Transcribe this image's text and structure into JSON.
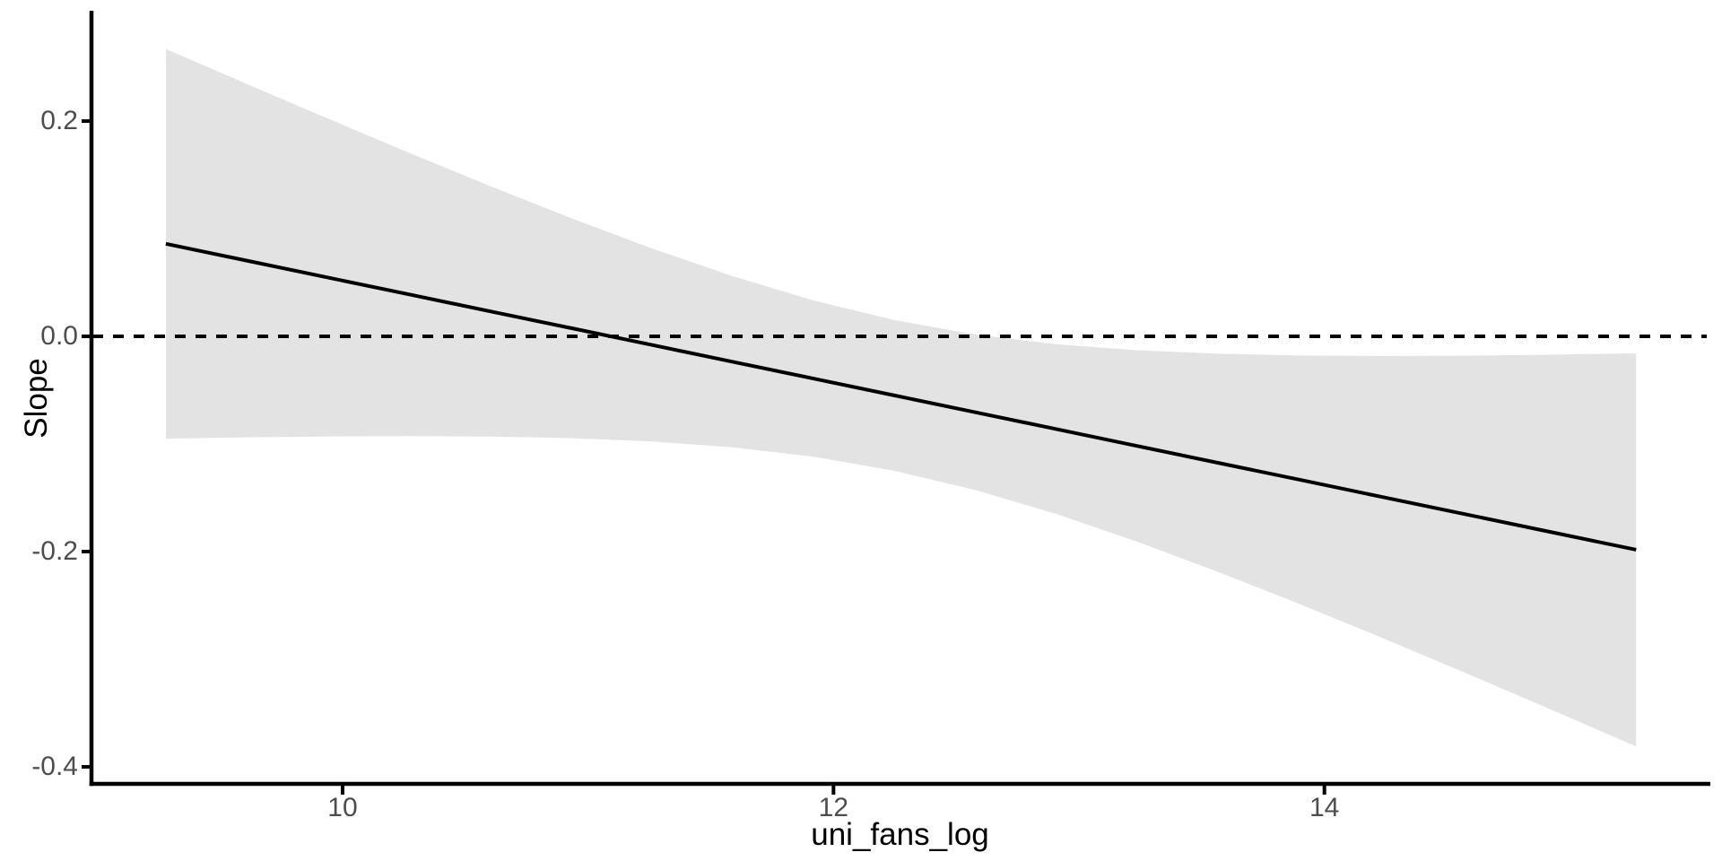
{
  "figure": {
    "background": "#FFFFFF"
  },
  "chart_data": {
    "type": "line",
    "title": "",
    "xlabel": "uni_fans_log",
    "ylabel": "Slope",
    "xlim": [
      8.977,
      15.565
    ],
    "ylim": [
      -0.4158,
      0.3008
    ],
    "grid": false,
    "legend_position": "none",
    "x_ticks": {
      "values": [
        10,
        12,
        14
      ],
      "labels": [
        "10",
        "12",
        "14"
      ]
    },
    "y_ticks": {
      "values": [
        0.2,
        0.0,
        -0.2,
        -0.4
      ],
      "labels": [
        "0.2",
        "0.0",
        "-0.2",
        "-0.4"
      ]
    },
    "reference_line": {
      "y": 0.0,
      "linetype": "dashed",
      "color": "#000000"
    },
    "series": [
      {
        "name": "marginal-slope-estimate",
        "type": "line",
        "color": "#000000",
        "x": [
          9.28,
          9.61,
          9.94,
          10.27,
          10.6,
          10.93,
          11.26,
          11.59,
          11.92,
          12.25,
          12.58,
          12.91,
          13.24,
          13.57,
          13.9,
          14.23,
          14.56,
          14.89,
          15.27
        ],
        "y": [
          0.086,
          0.0703,
          0.0546,
          0.039,
          0.0233,
          0.0077,
          -0.008,
          -0.0237,
          -0.0393,
          -0.055,
          -0.0707,
          -0.0863,
          -0.102,
          -0.1177,
          -0.1333,
          -0.149,
          -0.1646,
          -0.1803,
          -0.1983
        ]
      }
    ],
    "confidence_band": {
      "color": "#E3E3E3",
      "x": [
        9.28,
        9.61,
        9.94,
        10.27,
        10.6,
        10.93,
        11.26,
        11.59,
        11.92,
        12.25,
        12.58,
        12.91,
        13.24,
        13.57,
        13.9,
        14.23,
        14.56,
        14.89,
        15.27
      ],
      "ymax": [
        0.267,
        0.2345,
        0.2023,
        0.1706,
        0.1397,
        0.1099,
        0.0817,
        0.0558,
        0.0332,
        0.015,
        0.0016,
        -0.0074,
        -0.013,
        -0.0162,
        -0.0178,
        -0.0183,
        -0.018,
        -0.0172,
        -0.0157
      ],
      "ymin": [
        -0.0951,
        -0.0939,
        -0.093,
        -0.0927,
        -0.0931,
        -0.0946,
        -0.0977,
        -0.1031,
        -0.1119,
        -0.125,
        -0.1429,
        -0.1652,
        -0.191,
        -0.2191,
        -0.2488,
        -0.2797,
        -0.3113,
        -0.3435,
        -0.381
      ]
    },
    "colors": {
      "axis": "#000000",
      "tick": "#000000",
      "tick_label": "#4D4D4D",
      "axis_title": "#000000",
      "band": "#E3E3E3",
      "line": "#000000"
    }
  }
}
